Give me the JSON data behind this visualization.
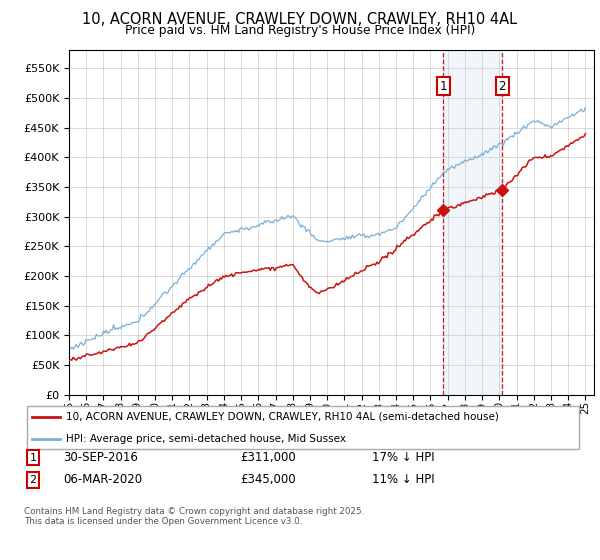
{
  "title1": "10, ACORN AVENUE, CRAWLEY DOWN, CRAWLEY, RH10 4AL",
  "title2": "Price paid vs. HM Land Registry's House Price Index (HPI)",
  "ylim": [
    0,
    580000
  ],
  "yticks": [
    0,
    50000,
    100000,
    150000,
    200000,
    250000,
    300000,
    350000,
    400000,
    450000,
    500000,
    550000
  ],
  "legend_line1": "10, ACORN AVENUE, CRAWLEY DOWN, CRAWLEY, RH10 4AL (semi-detached house)",
  "legend_line2": "HPI: Average price, semi-detached house, Mid Sussex",
  "annotation1_date": "30-SEP-2016",
  "annotation1_price": "£311,000",
  "annotation1_hpi": "17% ↓ HPI",
  "annotation2_date": "06-MAR-2020",
  "annotation2_price": "£345,000",
  "annotation2_hpi": "11% ↓ HPI",
  "footer": "Contains HM Land Registry data © Crown copyright and database right 2025.\nThis data is licensed under the Open Government Licence v3.0.",
  "hpi_color": "#7ab0d8",
  "price_color": "#cc1111",
  "vline_color": "#cc0000",
  "sale1_x": 2016.75,
  "sale1_y": 311000,
  "sale2_x": 2020.17,
  "sale2_y": 345000,
  "xlim_start": 1995,
  "xlim_end": 2025.5
}
